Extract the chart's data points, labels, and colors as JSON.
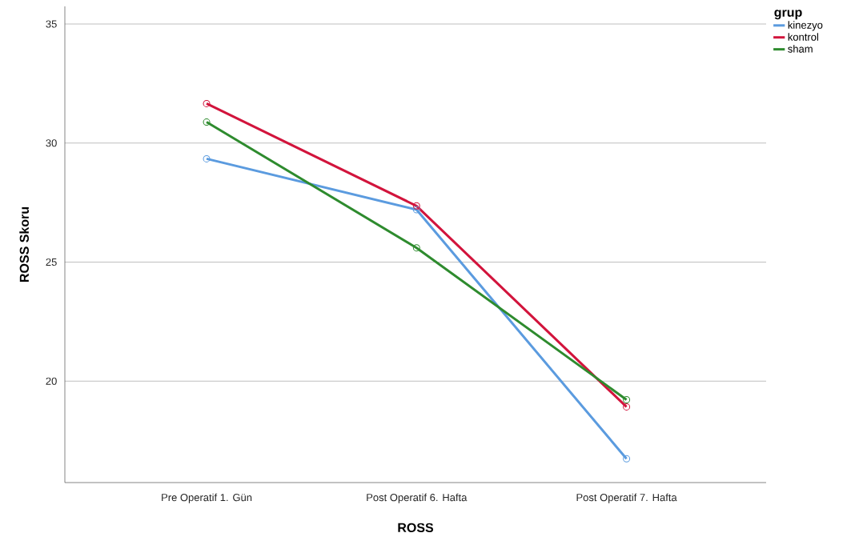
{
  "chart_data": {
    "type": "line",
    "xlabel": "ROSS",
    "ylabel": "ROSS Skoru",
    "legend_title": "grup",
    "legend": "top right",
    "grid": "y",
    "marker": "circle",
    "line_style": "solid",
    "categories": [
      "Pre Operatif 1. Gün",
      "Post Operatif 6. Hafta",
      "Post Operatif 7. Hafta"
    ],
    "ylim": [
      15.74,
      35.74
    ],
    "yticks": [
      20,
      25,
      30,
      35
    ],
    "series": [
      {
        "name": "kinezyo",
        "color": "#5b9bdf",
        "values": [
          29.34,
          27.2,
          16.74
        ]
      },
      {
        "name": "kontrol",
        "color": "#d2143c",
        "values": [
          31.66,
          27.36,
          18.92
        ]
      },
      {
        "name": "sham",
        "color": "#2e8b2e",
        "values": [
          30.88,
          25.6,
          19.22
        ]
      }
    ]
  }
}
